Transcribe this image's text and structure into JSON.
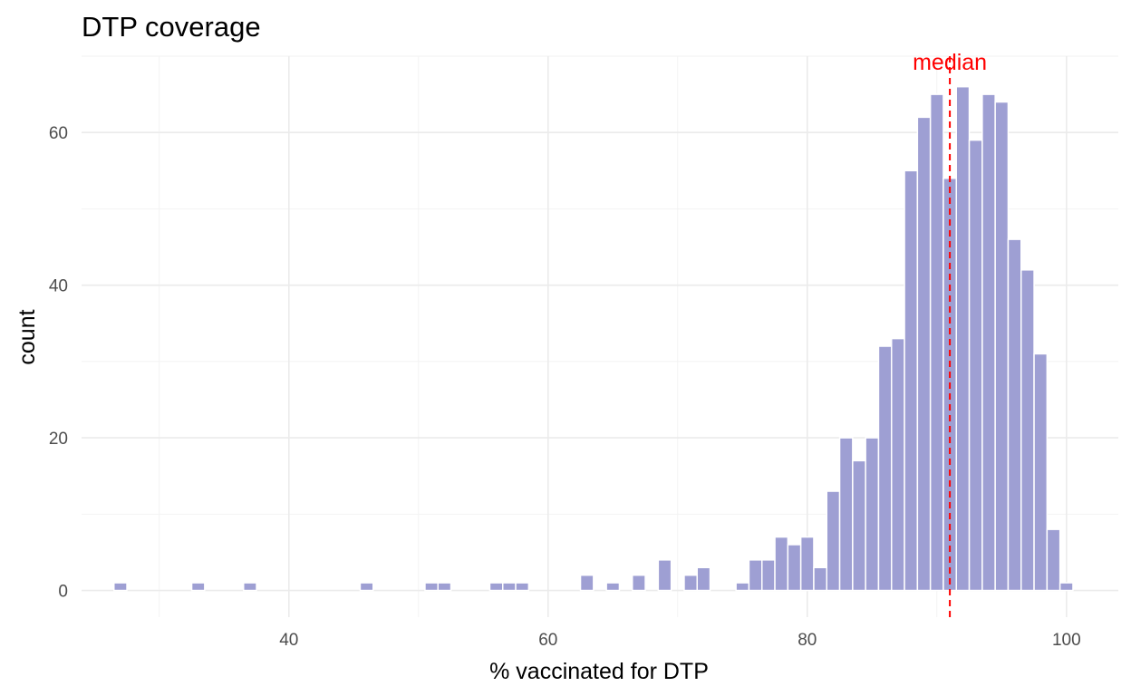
{
  "chart_data": {
    "type": "histogram",
    "title": "DTP coverage",
    "xlabel": "% vaccinated for DTP",
    "ylabel": "count",
    "xlim": [
      24,
      104
    ],
    "ylim": [
      -3.5,
      70
    ],
    "x_ticks": [
      40,
      60,
      80,
      100
    ],
    "y_ticks": [
      0,
      20,
      40,
      60
    ],
    "bin_width": 1,
    "bins": [
      {
        "x": 27,
        "count": 1
      },
      {
        "x": 33,
        "count": 1
      },
      {
        "x": 37,
        "count": 1
      },
      {
        "x": 46,
        "count": 1
      },
      {
        "x": 51,
        "count": 1
      },
      {
        "x": 52,
        "count": 1
      },
      {
        "x": 56,
        "count": 1
      },
      {
        "x": 57,
        "count": 1
      },
      {
        "x": 58,
        "count": 1
      },
      {
        "x": 63,
        "count": 2
      },
      {
        "x": 65,
        "count": 1
      },
      {
        "x": 67,
        "count": 2
      },
      {
        "x": 69,
        "count": 4
      },
      {
        "x": 71,
        "count": 2
      },
      {
        "x": 72,
        "count": 3
      },
      {
        "x": 75,
        "count": 1
      },
      {
        "x": 76,
        "count": 4
      },
      {
        "x": 77,
        "count": 4
      },
      {
        "x": 78,
        "count": 7
      },
      {
        "x": 79,
        "count": 6
      },
      {
        "x": 80,
        "count": 7
      },
      {
        "x": 81,
        "count": 3
      },
      {
        "x": 82,
        "count": 13
      },
      {
        "x": 83,
        "count": 20
      },
      {
        "x": 84,
        "count": 17
      },
      {
        "x": 85,
        "count": 20
      },
      {
        "x": 86,
        "count": 32
      },
      {
        "x": 87,
        "count": 33
      },
      {
        "x": 88,
        "count": 55
      },
      {
        "x": 89,
        "count": 62
      },
      {
        "x": 90,
        "count": 65
      },
      {
        "x": 91,
        "count": 54
      },
      {
        "x": 92,
        "count": 66
      },
      {
        "x": 93,
        "count": 59
      },
      {
        "x": 94,
        "count": 65
      },
      {
        "x": 95,
        "count": 64
      },
      {
        "x": 96,
        "count": 46
      },
      {
        "x": 97,
        "count": 42
      },
      {
        "x": 98,
        "count": 31
      },
      {
        "x": 99,
        "count": 8
      },
      {
        "x": 100,
        "count": 1
      }
    ],
    "bar_color": "#9e9fd3",
    "median": {
      "value": 91,
      "label": "median",
      "color": "#ff0000"
    }
  }
}
